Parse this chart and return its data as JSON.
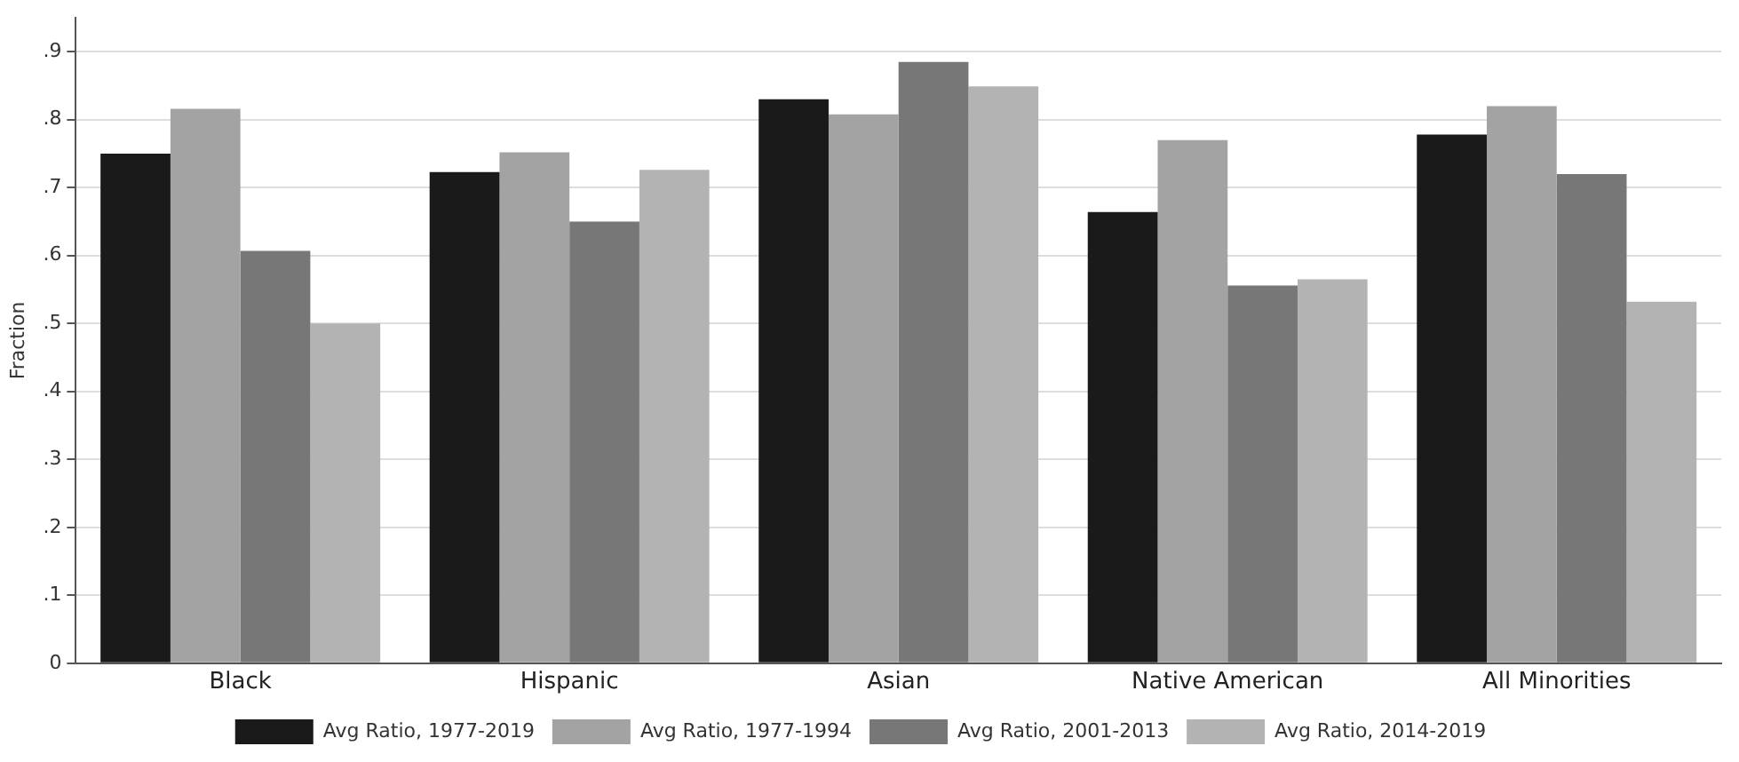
{
  "chart_data": {
    "type": "bar",
    "ylabel": "Fraction",
    "categories": [
      "Black",
      "Hispanic",
      "Asian",
      "Native American",
      "All Minorities"
    ],
    "series": [
      {
        "name": "Avg Ratio, 1977-2019",
        "color": "#1a1a1a",
        "values": [
          0.75,
          0.723,
          0.83,
          0.664,
          0.778
        ]
      },
      {
        "name": "Avg Ratio, 1977-1994",
        "color": "#a3a3a3",
        "values": [
          0.816,
          0.752,
          0.808,
          0.77,
          0.82
        ]
      },
      {
        "name": "Avg Ratio, 2001-2013",
        "color": "#777777",
        "values": [
          0.607,
          0.65,
          0.885,
          0.556,
          0.72
        ]
      },
      {
        "name": "Avg Ratio, 2014-2019",
        "color": "#b3b3b3",
        "values": [
          0.5,
          0.726,
          0.849,
          0.565,
          0.532
        ]
      }
    ],
    "ylim": [
      0,
      0.95
    ],
    "yticks": [
      0,
      {
        "value": 0.1,
        "label": ".1"
      },
      {
        "value": 0.2,
        "label": ".2"
      },
      {
        "value": 0.3,
        "label": ".3"
      },
      {
        "value": 0.4,
        "label": ".4"
      },
      {
        "value": 0.5,
        "label": ".5"
      },
      {
        "value": 0.6,
        "label": ".6"
      },
      {
        "value": 0.7,
        "label": ".7"
      },
      {
        "value": 0.8,
        "label": ".8"
      },
      {
        "value": 0.9,
        "label": ".9"
      }
    ],
    "grid": "y",
    "legend": "bottom"
  }
}
